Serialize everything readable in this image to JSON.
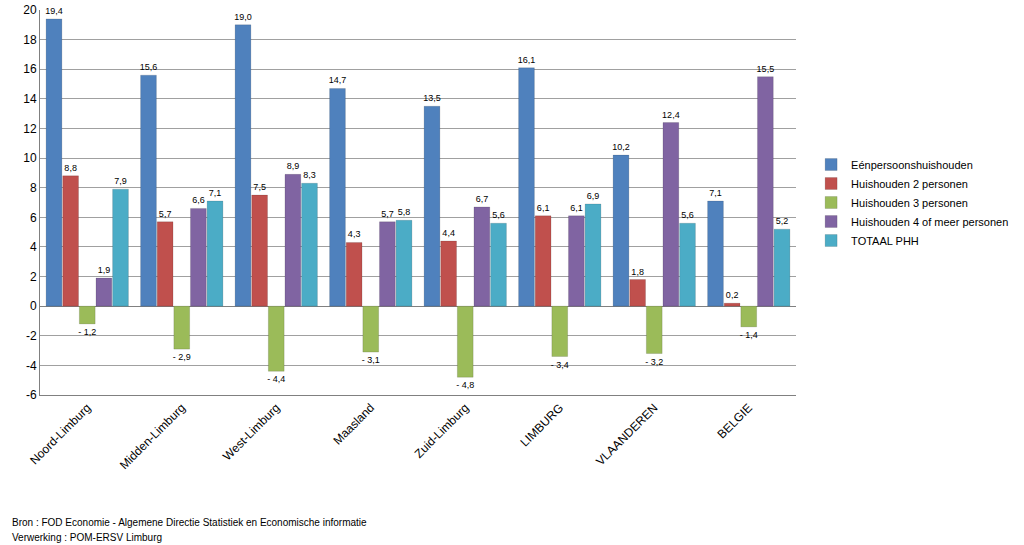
{
  "chart_data": {
    "type": "bar",
    "categories": [
      "Noord-Limburg",
      "Midden-Limburg",
      "West-Limburg",
      "Maasland",
      "Zuid-Limburg",
      "LIMBURG",
      "VLAANDEREN",
      "BELGIE"
    ],
    "series": [
      {
        "name": "Eénpersoonshuishouden",
        "color": "#4f81bd",
        "values": [
          19.4,
          15.6,
          19.0,
          14.7,
          13.5,
          16.1,
          10.2,
          7.1
        ],
        "value_labels": [
          "19,4",
          "15,6",
          "19,0",
          "14,7",
          "13,5",
          "16,1",
          "10,2",
          "7,1"
        ]
      },
      {
        "name": "Huishouden 2 personen",
        "color": "#c0504d",
        "values": [
          8.8,
          5.7,
          7.5,
          4.3,
          4.4,
          6.1,
          1.8,
          0.2
        ],
        "value_labels": [
          "8,8",
          "5,7",
          "7,5",
          "4,3",
          "4,4",
          "6,1",
          "1,8",
          "0,2"
        ]
      },
      {
        "name": "Huishouden 3 personen",
        "color": "#9bbb59",
        "values": [
          -1.2,
          -2.9,
          -4.4,
          -3.1,
          -4.8,
          -3.4,
          -3.2,
          -1.4
        ],
        "value_labels": [
          "- 1,2",
          "- 2,9",
          "- 4,4",
          "- 3,1",
          "- 4,8",
          "- 3,4",
          "- 3,2",
          "- 1,4"
        ]
      },
      {
        "name": "Huishouden 4 of meer personen",
        "color": "#8064a2",
        "values": [
          1.9,
          6.6,
          8.9,
          5.7,
          6.7,
          6.1,
          12.4,
          15.5
        ],
        "value_labels": [
          "1,9",
          "6,6",
          "8,9",
          "5,7",
          "6,7",
          "6,1",
          "12,4",
          "15,5"
        ]
      },
      {
        "name": "TOTAAL PHH",
        "color": "#4bacc6",
        "values": [
          7.9,
          7.1,
          8.3,
          5.8,
          5.6,
          6.9,
          5.6,
          5.2
        ],
        "value_labels": [
          "7,9",
          "7,1",
          "8,3",
          "5,8",
          "5,6",
          "6,9",
          "5,6",
          "5,2"
        ]
      }
    ],
    "ylim": [
      -6,
      20
    ],
    "yticks": [
      -6,
      -4,
      -2,
      0,
      2,
      4,
      6,
      8,
      10,
      12,
      14,
      16,
      18,
      20
    ],
    "grid": true,
    "legend": "right",
    "data_labels": true,
    "annotations": [
      "Bron : FOD Economie - Algemene Directie Statistiek en Economische informatie",
      "Verwerking : POM-ERSV Limburg"
    ]
  }
}
